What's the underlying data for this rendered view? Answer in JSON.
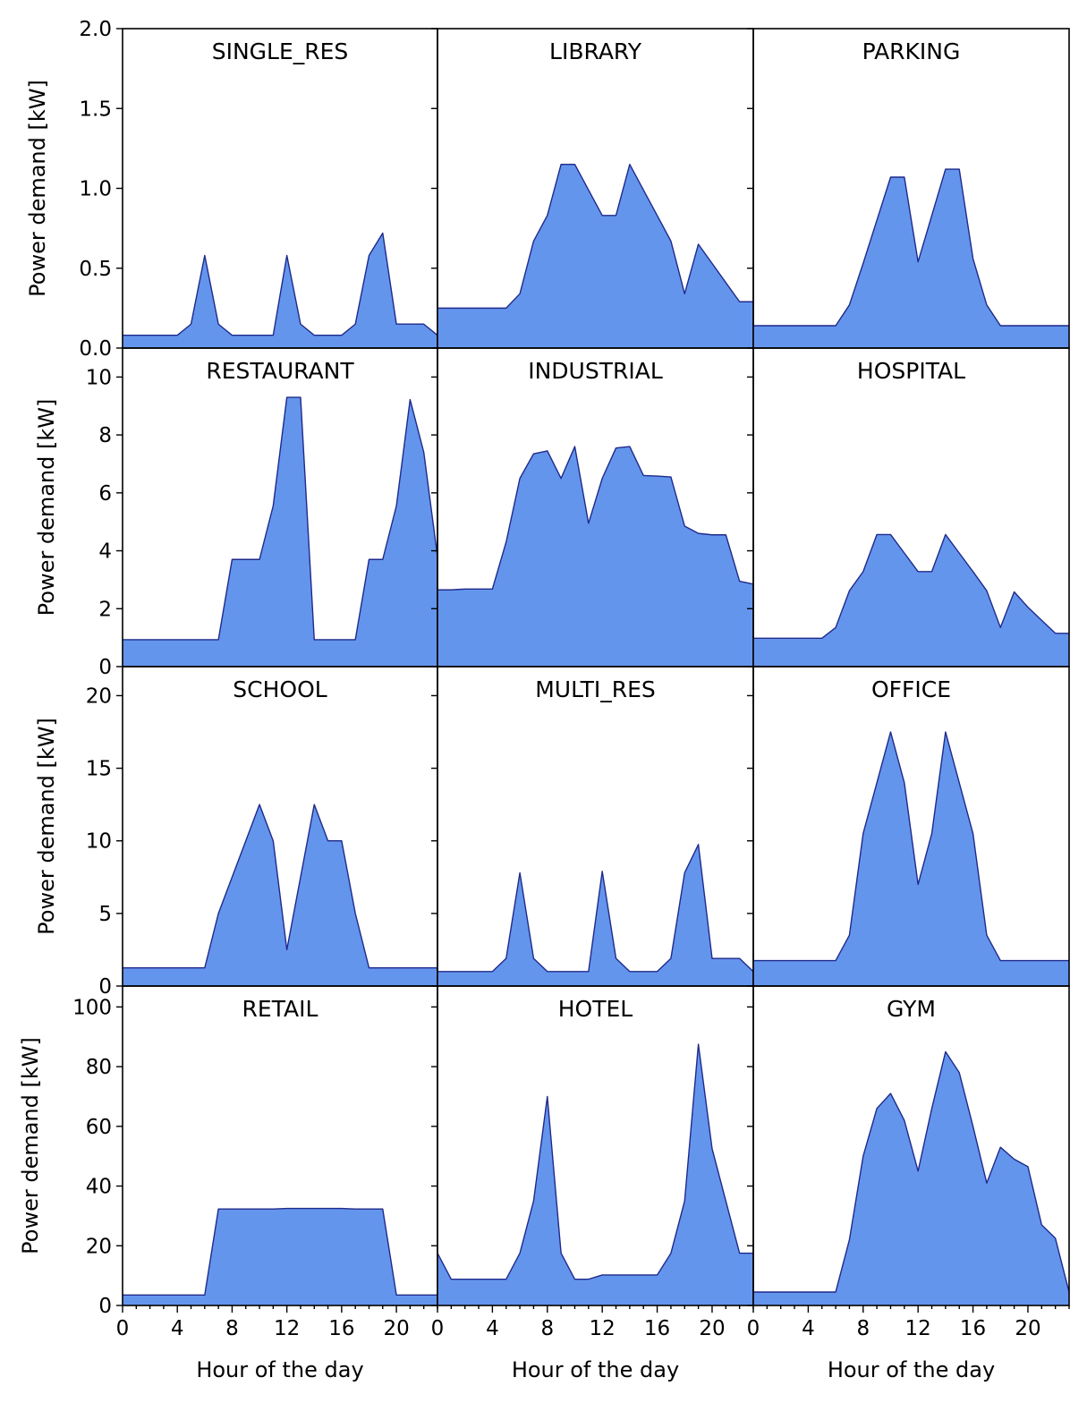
{
  "figure": {
    "fill_color": "#6495ED",
    "line_color": "#1f2a8a",
    "ylabel": "Power demand [kW]",
    "xlabel": "Hour of the day",
    "x_ticks": [
      0,
      4,
      8,
      12,
      16,
      20
    ],
    "x_range": [
      0,
      23
    ],
    "row_ylims": [
      [
        0,
        2.0
      ],
      [
        0,
        11
      ],
      [
        0,
        22
      ],
      [
        0,
        107
      ]
    ],
    "row_yticks": [
      [
        "0.0",
        "0.5",
        "1.0",
        "1.5",
        "2.0"
      ],
      [
        "0",
        "2",
        "4",
        "6",
        "8",
        "10"
      ],
      [
        "0",
        "5",
        "10",
        "15",
        "20"
      ],
      [
        "0",
        "20",
        "40",
        "60",
        "80",
        "100"
      ]
    ]
  },
  "chart_data": [
    {
      "type": "area",
      "title": "SINGLE_RES",
      "x": [
        0,
        1,
        2,
        3,
        4,
        5,
        6,
        7,
        8,
        9,
        10,
        11,
        12,
        13,
        14,
        15,
        16,
        17,
        18,
        19,
        20,
        21,
        22,
        23
      ],
      "values": [
        0.08,
        0.08,
        0.08,
        0.08,
        0.08,
        0.15,
        0.58,
        0.15,
        0.08,
        0.08,
        0.08,
        0.08,
        0.58,
        0.15,
        0.08,
        0.08,
        0.08,
        0.15,
        0.58,
        0.72,
        0.15,
        0.15,
        0.15,
        0.08
      ]
    },
    {
      "type": "area",
      "title": "LIBRARY",
      "x": [
        0,
        1,
        2,
        3,
        4,
        5,
        6,
        7,
        8,
        9,
        10,
        11,
        12,
        13,
        14,
        15,
        16,
        17,
        18,
        19,
        20,
        21,
        22,
        23
      ],
      "values": [
        0.25,
        0.25,
        0.25,
        0.25,
        0.25,
        0.25,
        0.34,
        0.67,
        0.83,
        1.15,
        1.15,
        0.99,
        0.83,
        0.83,
        1.15,
        0.99,
        0.83,
        0.67,
        0.34,
        0.65,
        0.53,
        0.41,
        0.29,
        0.29
      ]
    },
    {
      "type": "area",
      "title": "PARKING",
      "x": [
        0,
        1,
        2,
        3,
        4,
        5,
        6,
        7,
        8,
        9,
        10,
        11,
        12,
        13,
        14,
        15,
        16,
        17,
        18,
        19,
        20,
        21,
        22,
        23
      ],
      "values": [
        0.14,
        0.14,
        0.14,
        0.14,
        0.14,
        0.14,
        0.14,
        0.27,
        0.53,
        0.8,
        1.07,
        1.07,
        0.54,
        0.83,
        1.12,
        1.12,
        0.56,
        0.27,
        0.14,
        0.14,
        0.14,
        0.14,
        0.14,
        0.14
      ]
    },
    {
      "type": "area",
      "title": "RESTAURANT",
      "x": [
        0,
        1,
        2,
        3,
        4,
        5,
        6,
        7,
        8,
        9,
        10,
        11,
        12,
        13,
        14,
        15,
        16,
        17,
        18,
        19,
        20,
        21,
        22,
        23
      ],
      "values": [
        0.93,
        0.93,
        0.93,
        0.93,
        0.93,
        0.93,
        0.93,
        0.93,
        3.7,
        3.7,
        3.7,
        5.55,
        9.3,
        9.3,
        0.93,
        0.93,
        0.93,
        0.93,
        3.7,
        3.7,
        5.55,
        9.22,
        7.4,
        3.8
      ]
    },
    {
      "type": "area",
      "title": "INDUSTRIAL",
      "x": [
        0,
        1,
        2,
        3,
        4,
        5,
        6,
        7,
        8,
        9,
        10,
        11,
        12,
        13,
        14,
        15,
        16,
        17,
        18,
        19,
        20,
        21,
        22,
        23
      ],
      "values": [
        2.65,
        2.65,
        2.68,
        2.68,
        2.68,
        4.3,
        6.5,
        7.35,
        7.45,
        6.5,
        7.6,
        4.95,
        6.5,
        7.55,
        7.6,
        6.6,
        6.58,
        6.55,
        4.85,
        4.6,
        4.55,
        4.55,
        2.95,
        2.85
      ]
    },
    {
      "type": "area",
      "title": "HOSPITAL",
      "x": [
        0,
        1,
        2,
        3,
        4,
        5,
        6,
        7,
        8,
        9,
        10,
        11,
        12,
        13,
        14,
        15,
        16,
        17,
        18,
        19,
        20,
        21,
        22,
        23
      ],
      "values": [
        0.98,
        0.98,
        0.98,
        0.98,
        0.98,
        0.98,
        1.35,
        2.62,
        3.28,
        4.56,
        4.56,
        3.92,
        3.28,
        3.28,
        4.56,
        3.92,
        3.28,
        2.62,
        1.35,
        2.58,
        2.05,
        1.6,
        1.15,
        1.15
      ]
    },
    {
      "type": "area",
      "title": "SCHOOL",
      "x": [
        0,
        1,
        2,
        3,
        4,
        5,
        6,
        7,
        8,
        9,
        10,
        11,
        12,
        13,
        14,
        15,
        16,
        17,
        18,
        19,
        20,
        21,
        22,
        23
      ],
      "values": [
        1.25,
        1.25,
        1.25,
        1.25,
        1.25,
        1.25,
        1.25,
        5.0,
        7.5,
        10.0,
        12.5,
        10.0,
        2.5,
        7.5,
        12.5,
        10.0,
        10.0,
        5.0,
        1.25,
        1.25,
        1.25,
        1.25,
        1.25,
        1.25
      ]
    },
    {
      "type": "area",
      "title": "MULTI_RES",
      "x": [
        0,
        1,
        2,
        3,
        4,
        5,
        6,
        7,
        8,
        9,
        10,
        11,
        12,
        13,
        14,
        15,
        16,
        17,
        18,
        19,
        20,
        21,
        22,
        23
      ],
      "values": [
        1.0,
        1.0,
        1.0,
        1.0,
        1.0,
        1.9,
        7.8,
        1.9,
        1.0,
        1.0,
        1.0,
        1.0,
        7.9,
        1.9,
        1.0,
        1.0,
        1.0,
        1.9,
        7.8,
        9.75,
        1.9,
        1.9,
        1.9,
        1.0
      ]
    },
    {
      "type": "area",
      "title": "OFFICE",
      "x": [
        0,
        1,
        2,
        3,
        4,
        5,
        6,
        7,
        8,
        9,
        10,
        11,
        12,
        13,
        14,
        15,
        16,
        17,
        18,
        19,
        20,
        21,
        22,
        23
      ],
      "values": [
        1.75,
        1.75,
        1.75,
        1.75,
        1.75,
        1.75,
        1.75,
        3.5,
        10.5,
        14.0,
        17.5,
        14.0,
        7.0,
        10.5,
        17.5,
        14.0,
        10.5,
        3.5,
        1.75,
        1.75,
        1.75,
        1.75,
        1.75,
        1.75
      ]
    },
    {
      "type": "area",
      "title": "RETAIL",
      "x": [
        0,
        1,
        2,
        3,
        4,
        5,
        6,
        7,
        8,
        9,
        10,
        11,
        12,
        13,
        14,
        15,
        16,
        17,
        18,
        19,
        20,
        21,
        22,
        23
      ],
      "values": [
        3.5,
        3.5,
        3.5,
        3.5,
        3.5,
        3.5,
        3.5,
        32.3,
        32.3,
        32.3,
        32.3,
        32.3,
        32.5,
        32.5,
        32.5,
        32.5,
        32.5,
        32.3,
        32.3,
        32.3,
        3.5,
        3.5,
        3.5,
        3.5
      ]
    },
    {
      "type": "area",
      "title": "HOTEL",
      "x": [
        0,
        1,
        2,
        3,
        4,
        5,
        6,
        7,
        8,
        9,
        10,
        11,
        12,
        13,
        14,
        15,
        16,
        17,
        18,
        19,
        20,
        21,
        22,
        23
      ],
      "values": [
        17.5,
        8.8,
        8.8,
        8.8,
        8.8,
        8.8,
        17.5,
        35.0,
        70.0,
        17.5,
        8.8,
        8.8,
        10.2,
        10.2,
        10.2,
        10.2,
        10.2,
        17.5,
        35.0,
        87.5,
        52.5,
        35.0,
        17.5,
        17.5
      ]
    },
    {
      "type": "area",
      "title": "GYM",
      "x": [
        0,
        1,
        2,
        3,
        4,
        5,
        6,
        7,
        8,
        9,
        10,
        11,
        12,
        13,
        14,
        15,
        16,
        17,
        18,
        19,
        20,
        21,
        22,
        23
      ],
      "values": [
        4.5,
        4.5,
        4.5,
        4.5,
        4.5,
        4.5,
        4.5,
        22.0,
        50.0,
        66.0,
        71.0,
        62.0,
        45.0,
        66.0,
        85.0,
        78.0,
        60.0,
        41.0,
        53.0,
        49.0,
        46.5,
        27.0,
        22.5,
        4.5
      ]
    }
  ]
}
